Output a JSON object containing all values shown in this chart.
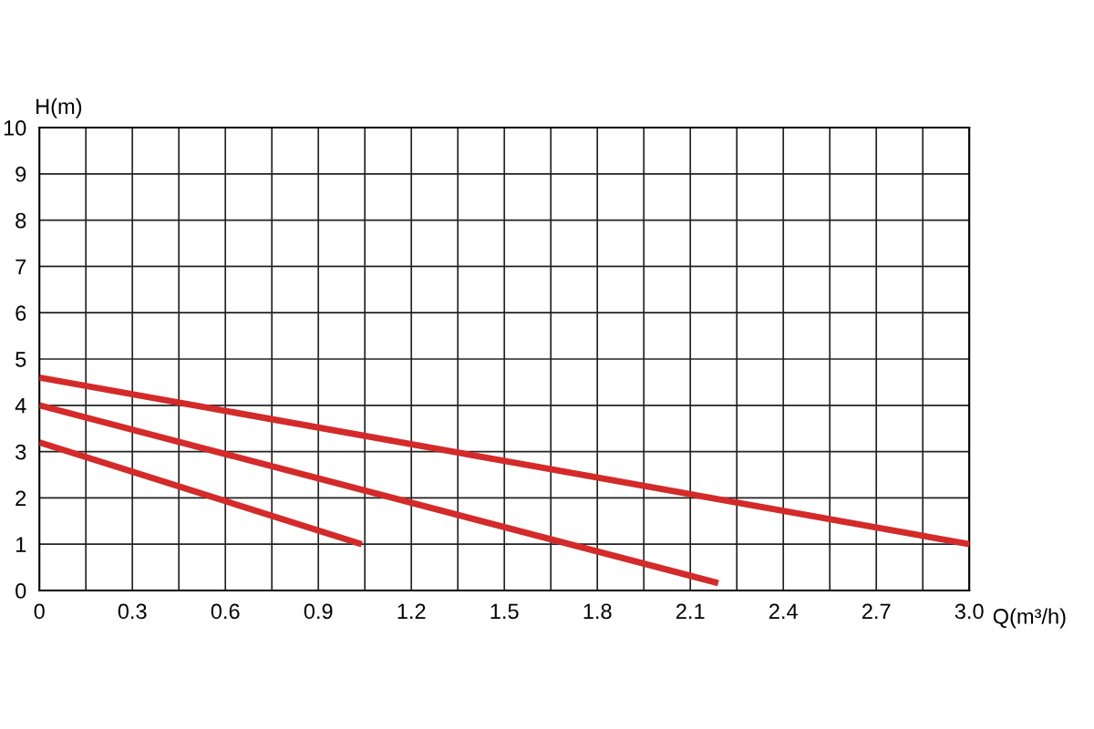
{
  "chart_data": {
    "type": "line",
    "xlabel": "Q(m³/h)",
    "ylabel": "H(m)",
    "xlim": [
      0,
      3.0
    ],
    "ylim": [
      0,
      10
    ],
    "xticks": [
      0,
      {
        "value": 0.15,
        "label": null
      },
      0.3,
      {
        "value": 0.45,
        "label": null
      },
      0.6,
      {
        "value": 0.75,
        "label": null
      },
      0.9,
      {
        "value": 1.05,
        "label": null
      },
      1.2,
      {
        "value": 1.35,
        "label": null
      },
      1.5,
      {
        "value": 1.65,
        "label": null
      },
      1.8,
      {
        "value": 1.95,
        "label": null
      },
      2.1,
      {
        "value": 2.25,
        "label": null
      },
      2.4,
      {
        "value": 2.55,
        "label": null
      },
      2.7,
      {
        "value": 2.85,
        "label": null
      },
      {
        "value": 3.0,
        "label": "3.0"
      }
    ],
    "yticks": [
      0,
      1,
      2,
      3,
      4,
      5,
      6,
      7,
      8,
      9,
      10
    ],
    "grid": true,
    "line_style": "solid",
    "marker": "none",
    "series": [
      {
        "color": "#d42a2a",
        "x": [
          0,
          3.0
        ],
        "values": [
          4.6,
          1.0
        ]
      },
      {
        "color": "#d42a2a",
        "x": [
          0,
          2.19
        ],
        "values": [
          4.0,
          0.16
        ]
      },
      {
        "color": "#d42a2a",
        "x": [
          0,
          1.04
        ],
        "values": [
          3.2,
          1.0
        ]
      }
    ]
  }
}
